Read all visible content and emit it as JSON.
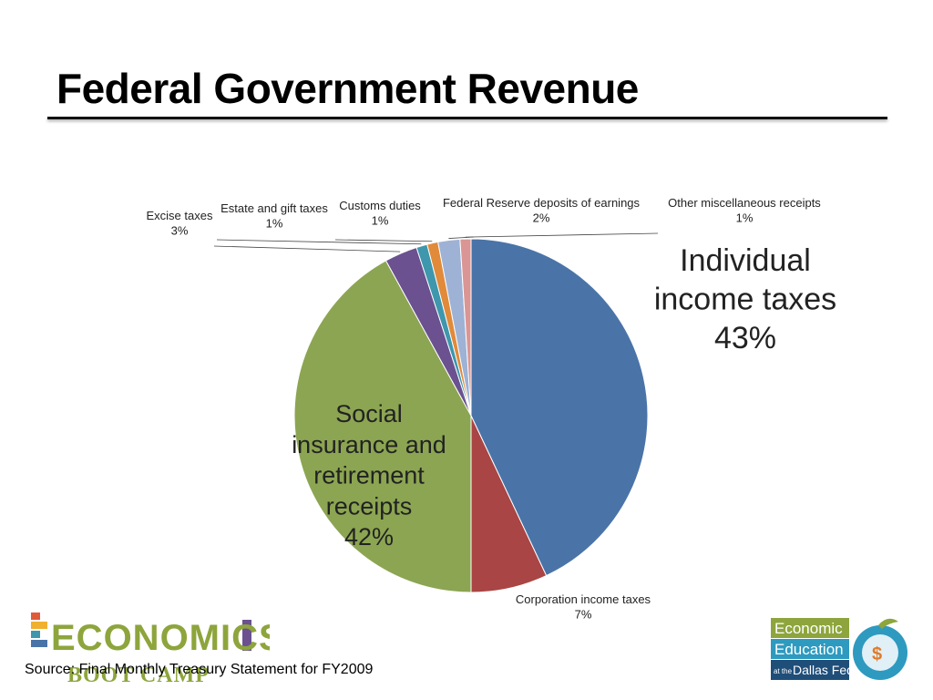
{
  "slide": {
    "title": "Federal Government Revenue",
    "source": "Source: Final Monthly Treasury Statement for FY2009"
  },
  "chart_data": {
    "type": "pie",
    "title": "",
    "slices": [
      {
        "label": "Individual income taxes",
        "value": 43,
        "display": "43%",
        "color": "#4A74A8"
      },
      {
        "label": "Corporation income taxes",
        "value": 7,
        "display": "7%",
        "color": "#A94544"
      },
      {
        "label": "Social insurance and retirement receipts",
        "value": 42,
        "display": "42%",
        "color": "#8CA552"
      },
      {
        "label": "Excise taxes",
        "value": 3,
        "display": "3%",
        "color": "#6B5190"
      },
      {
        "label": "Estate and gift taxes",
        "value": 1,
        "display": "1%",
        "color": "#3E97AD"
      },
      {
        "label": "Customs duties",
        "value": 1,
        "display": "1%",
        "color": "#E08A3A"
      },
      {
        "label": "Federal Reserve deposits of earnings",
        "value": 2,
        "display": "2%",
        "color": "#9DB2D5"
      },
      {
        "label": "Other miscellaneous receipts",
        "value": 1,
        "display": "1%",
        "color": "#D99694"
      }
    ]
  },
  "logos": {
    "left_word": "ECONOMICS",
    "left_sub": "BOOT CAMP",
    "right_line1": "Economic",
    "right_line2": "Education",
    "right_line3_small": "at the",
    "right_line3": "Dallas Fed"
  },
  "colors": {
    "green": "#8DA53C",
    "navy": "#1F4E79",
    "accent": "#E07B2A",
    "teal": "#2E9ABF"
  }
}
